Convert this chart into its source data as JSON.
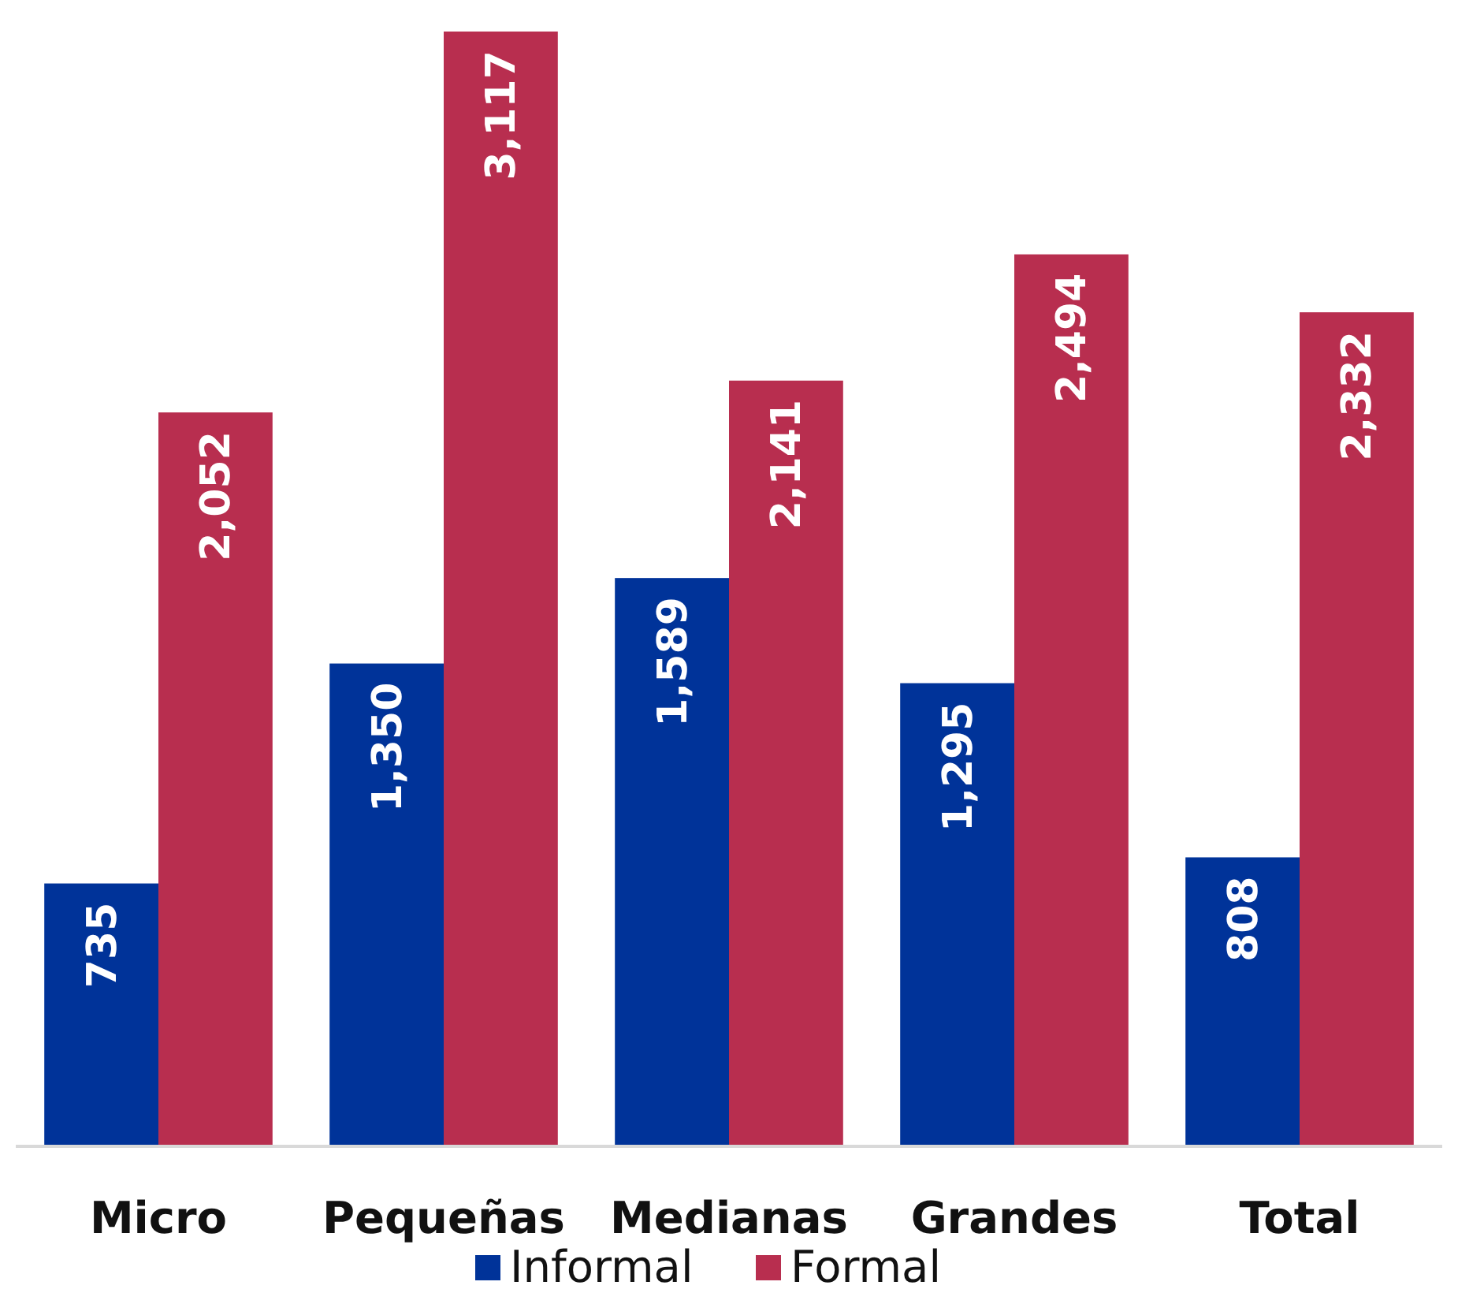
{
  "chart_data": {
    "type": "bar",
    "categories": [
      "Micro",
      "Pequeñas",
      "Medianas",
      "Grandes",
      "Total"
    ],
    "series": [
      {
        "name": "Informal",
        "color": "#003399",
        "values": [
          735,
          1350,
          1589,
          1295,
          808
        ],
        "value_labels": [
          "735",
          "1,350",
          "1,589",
          "1,295",
          "808"
        ]
      },
      {
        "name": "Formal",
        "color": "#b82e4f",
        "values": [
          2052,
          3117,
          2141,
          2494,
          2332
        ],
        "value_labels": [
          "2,052",
          "3,117",
          "2,141",
          "2,494",
          "2,332"
        ]
      }
    ],
    "legend": "bottom",
    "grid": false
  }
}
